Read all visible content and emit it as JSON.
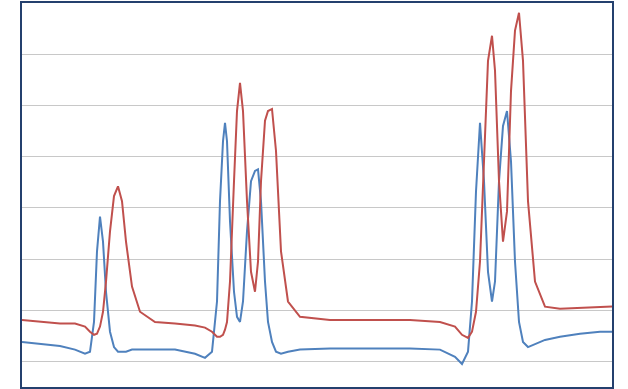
{
  "chart_data": {
    "type": "line",
    "x": [
      0,
      18,
      38,
      53,
      63,
      68,
      72,
      75,
      78,
      81,
      84,
      88,
      92,
      96,
      100,
      104,
      110,
      118,
      133,
      153,
      173,
      183,
      190,
      195,
      198,
      201,
      203,
      205,
      208,
      212,
      215,
      218,
      221,
      225,
      229,
      233,
      236,
      239,
      243,
      246,
      250,
      254,
      259,
      266,
      278,
      308,
      348,
      388,
      418,
      433,
      440,
      446,
      450,
      454,
      458,
      462,
      466,
      470,
      473,
      477,
      481,
      485,
      489,
      493,
      497,
      501,
      506,
      513,
      523,
      538,
      558,
      578,
      590
    ],
    "series": [
      {
        "color": "#4f81bd",
        "values": [
          0.38,
          0.34,
          0.3,
          0.23,
          0.15,
          0.19,
          0.77,
          2.15,
          2.83,
          2.34,
          1.36,
          0.58,
          0.28,
          0.19,
          0.19,
          0.19,
          0.23,
          0.23,
          0.23,
          0.23,
          0.15,
          0.07,
          0.19,
          1.17,
          3.13,
          4.3,
          4.66,
          4.3,
          2.74,
          1.36,
          0.87,
          0.77,
          1.17,
          2.54,
          3.52,
          3.72,
          3.75,
          3.13,
          1.56,
          0.77,
          0.38,
          0.19,
          0.15,
          0.19,
          0.23,
          0.25,
          0.25,
          0.25,
          0.23,
          0.09,
          -0.05,
          0.19,
          1.17,
          3.32,
          4.66,
          3.52,
          1.75,
          1.17,
          1.56,
          3.52,
          4.6,
          4.89,
          3.91,
          1.95,
          0.77,
          0.38,
          0.28,
          0.34,
          0.42,
          0.48,
          0.54,
          0.58,
          0.58
        ]
      },
      {
        "color": "#c0504d",
        "values": [
          0.81,
          0.77,
          0.74,
          0.74,
          0.68,
          0.58,
          0.52,
          0.54,
          0.68,
          0.97,
          1.56,
          2.54,
          3.23,
          3.42,
          3.13,
          2.34,
          1.46,
          0.97,
          0.77,
          0.74,
          0.7,
          0.66,
          0.58,
          0.48,
          0.48,
          0.52,
          0.62,
          0.77,
          1.56,
          3.52,
          4.89,
          5.44,
          4.89,
          3.13,
          1.75,
          1.36,
          1.95,
          3.52,
          4.7,
          4.89,
          4.93,
          4.11,
          2.15,
          1.17,
          0.87,
          0.81,
          0.81,
          0.81,
          0.77,
          0.68,
          0.52,
          0.46,
          0.58,
          0.97,
          1.95,
          4.11,
          5.87,
          6.36,
          5.68,
          3.52,
          2.34,
          2.93,
          5.28,
          6.46,
          6.81,
          5.87,
          3.13,
          1.56,
          1.07,
          1.03,
          1.05,
          1.07,
          1.07
        ]
      }
    ],
    "xlim": [
      0,
      590
    ],
    "xticks": [],
    "ylim": [
      -0.5,
      7
    ],
    "yticks": [
      0,
      1,
      2,
      3,
      4,
      5,
      6
    ],
    "grid": true,
    "tick_labels": false
  }
}
